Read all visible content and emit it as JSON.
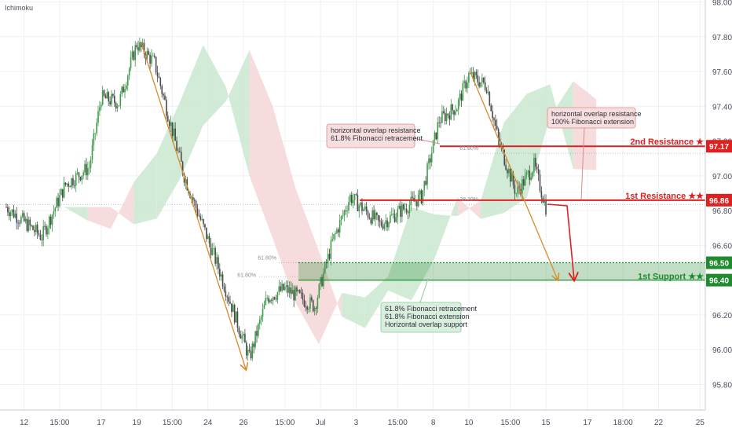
{
  "indicator_label": "Ichimoku",
  "chart_data": {
    "type": "candlestick",
    "title": "",
    "xlabel": "",
    "ylabel": "",
    "ylim": [
      95.68,
      98.0
    ],
    "y_ticks": [
      98.0,
      97.8,
      97.6,
      97.4,
      97.2,
      97.0,
      96.8,
      96.6,
      96.2,
      96.0,
      95.8
    ],
    "x_tick_labels": [
      "12",
      "15:00",
      "17",
      "19",
      "15:00",
      "24",
      "26",
      "15:00",
      "Jul",
      "3",
      "15:00",
      "8",
      "10",
      "15:00",
      "15",
      "17",
      "18:00",
      "22",
      "25"
    ],
    "x_tick_index": [
      3,
      9,
      16,
      22,
      28,
      34,
      40,
      47,
      53,
      59,
      66,
      72,
      78,
      85,
      91,
      98,
      104,
      110,
      117
    ],
    "price_path": [
      [
        0,
        96.82
      ],
      [
        6,
        96.65
      ],
      [
        10,
        96.95
      ],
      [
        14,
        97.05
      ],
      [
        16,
        97.45
      ],
      [
        19,
        97.42
      ],
      [
        22,
        97.76
      ],
      [
        25,
        97.65
      ],
      [
        30,
        97.0
      ],
      [
        36,
        96.45
      ],
      [
        41,
        95.95
      ],
      [
        44,
        96.3
      ],
      [
        47,
        96.35
      ],
      [
        52,
        96.25
      ],
      [
        55,
        96.62
      ],
      [
        58,
        96.88
      ],
      [
        63,
        96.72
      ],
      [
        70,
        96.88
      ],
      [
        73,
        97.32
      ],
      [
        76,
        97.4
      ],
      [
        78,
        97.58
      ],
      [
        81,
        97.52
      ],
      [
        83,
        97.2
      ],
      [
        86,
        96.9
      ],
      [
        89,
        97.06
      ],
      [
        91,
        96.82
      ]
    ],
    "series": [
      {
        "role": "price",
        "color": "#5a5a5a"
      },
      {
        "role": "cloud-bullish",
        "color": "#c9e8cf"
      },
      {
        "role": "cloud-bearish",
        "color": "#f4d6d6"
      }
    ],
    "levels": [
      {
        "label": "2nd Resistance ★",
        "value": 97.17,
        "tag": "97.17",
        "color": "#e02020"
      },
      {
        "label": "1st Resistance ★★",
        "value": 96.86,
        "tag": "96.86",
        "color": "#e02020"
      },
      {
        "label": "",
        "value": 96.5,
        "tag": "96.50",
        "color": "#1f8a2e"
      },
      {
        "label": "1st Support ★★",
        "value": 96.4,
        "tag": "96.40",
        "color": "#1f8a2e"
      }
    ],
    "fib_labels": [
      "61.80%",
      "61.80%",
      "61.80%",
      "38.20%"
    ],
    "annotations": [
      {
        "lines": [
          "horizontal overlap resistance",
          "61.8% Fibonacci retracement"
        ]
      },
      {
        "lines": [
          "horizontal overlap resistance",
          "100% Fibonacci extension"
        ]
      },
      {
        "lines": [
          "61.8% Fibonacci retracement",
          "61.8% Fibonacci extension",
          "Horizontal overlap support"
        ]
      }
    ]
  },
  "colors": {
    "up_candle": "#3f9b4a",
    "down_candle": "#4a4a4a",
    "resistance": "#e02020",
    "support": "#1f8a2e",
    "arrow_down": "#d88a2a",
    "arrow_red": "#e02020"
  }
}
